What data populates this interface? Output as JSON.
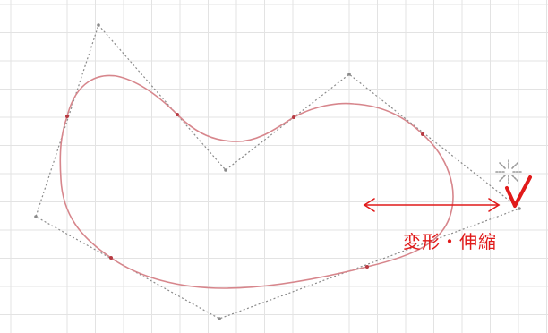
{
  "annotation": {
    "label": "変形・伸縮",
    "color": "#e11a1a"
  },
  "canvas": {
    "background": "#ffffff",
    "grid_color": "#e3e3e3",
    "curve_color": "#d7868c",
    "control_line_color": "#8a8a8a",
    "node_color": "#b73a42"
  },
  "icons": [
    "move-cursor-icon",
    "checkmark-icon",
    "double-arrow-icon"
  ]
}
